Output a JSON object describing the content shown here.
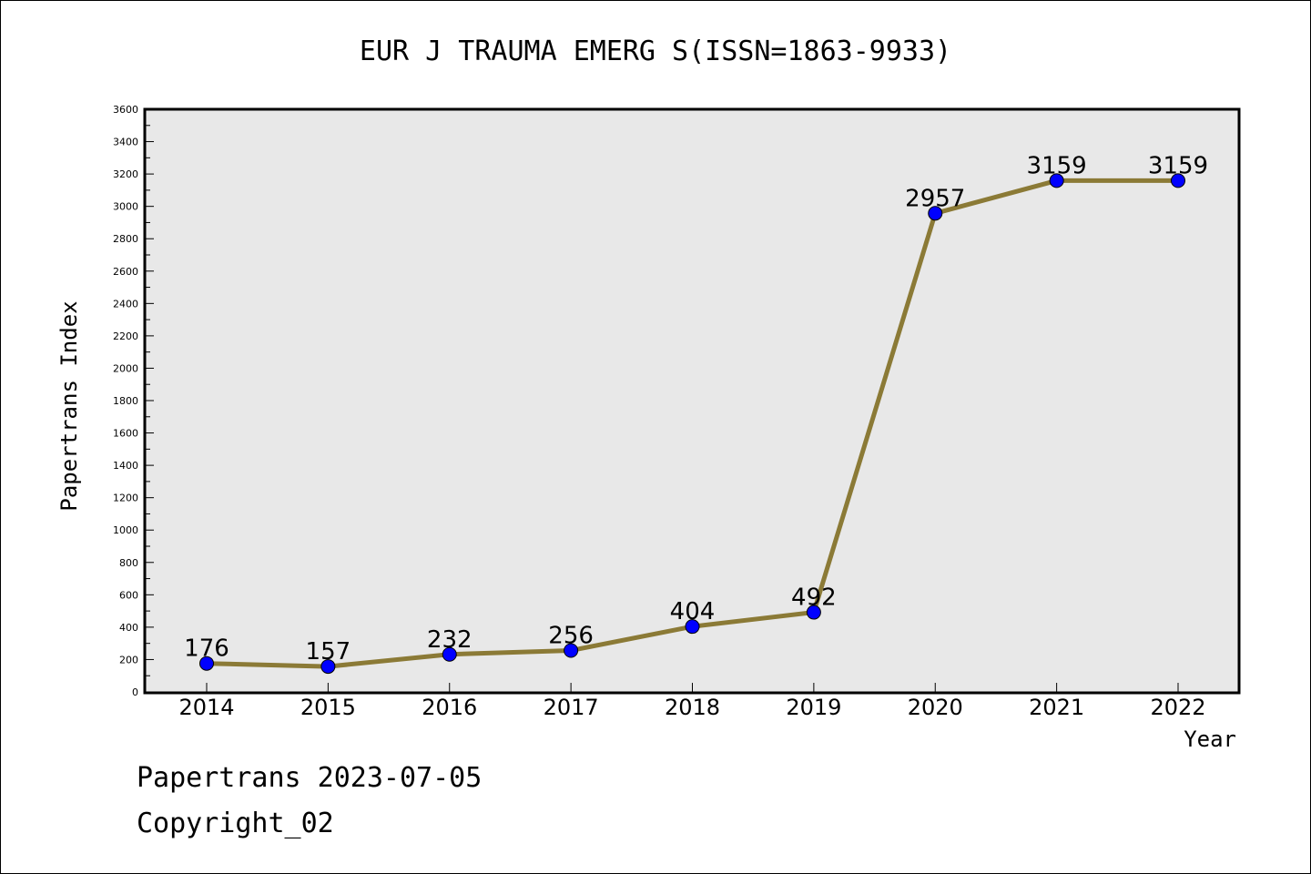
{
  "chart_data": {
    "type": "line",
    "title": "EUR J TRAUMA EMERG S(ISSN=1863-9933)",
    "xlabel": "Year",
    "ylabel": "Papertrans Index",
    "categories": [
      "2014",
      "2015",
      "2016",
      "2017",
      "2018",
      "2019",
      "2020",
      "2021",
      "2022"
    ],
    "values": [
      176,
      157,
      232,
      256,
      404,
      492,
      2957,
      3159,
      3159
    ],
    "data_labels": [
      "176",
      "157",
      "232",
      "256",
      "404",
      "492",
      "2957",
      "3159",
      "3159"
    ],
    "ylim": [
      0,
      3600
    ],
    "yticks": [
      "0",
      "200",
      "400",
      "600",
      "800",
      "1000",
      "1200",
      "1400",
      "1600",
      "1800",
      "2000",
      "2200",
      "2400",
      "2600",
      "2800",
      "3000",
      "3200",
      "3400",
      "3600"
    ],
    "grid": false,
    "legend": "none",
    "colors": {
      "line": "#8b7a36",
      "marker": "#0000ff",
      "plot_bg": "#e8e8e8"
    }
  },
  "footer": {
    "line1": "Papertrans 2023-07-05",
    "line2": "Copyright_02"
  }
}
